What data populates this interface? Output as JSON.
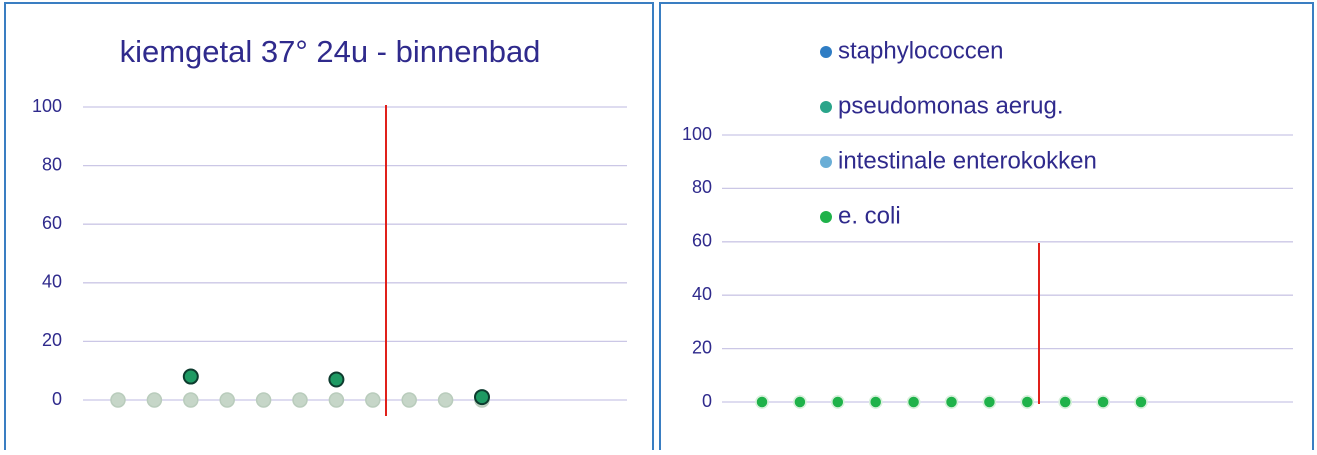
{
  "chart_data": [
    {
      "type": "scatter",
      "title": "kiemgetal 37° 24u - binnenbad",
      "categories": [
        null,
        null,
        null,
        null,
        null,
        null,
        null,
        null,
        null,
        null,
        null
      ],
      "series": [
        {
          "color": "#c6d6c8",
          "values": [
            0,
            0,
            0,
            0,
            0,
            0,
            0,
            0,
            0,
            0,
            0
          ]
        },
        {
          "color": "#1e9a63",
          "values": [
            null,
            null,
            8,
            null,
            null,
            null,
            7,
            null,
            null,
            null,
            1
          ]
        }
      ],
      "ylim": [
        0,
        100
      ],
      "yticks": [
        0,
        20,
        40,
        60,
        80,
        100
      ],
      "grid": true
    },
    {
      "type": "scatter",
      "categories": [
        null,
        null,
        null,
        null,
        null,
        null,
        null,
        null,
        null,
        null,
        null
      ],
      "series": [
        {
          "name": "staphylococcen",
          "color": "#2f7dc4",
          "values": [
            0,
            0,
            0,
            0,
            0,
            0,
            0,
            0,
            0,
            0,
            0
          ]
        },
        {
          "name": "pseudomonas aerug.",
          "color": "#2aa58a",
          "values": [
            0,
            0,
            0,
            0,
            0,
            0,
            0,
            0,
            0,
            0,
            0
          ]
        },
        {
          "name": "intestinale enterokokken",
          "color": "#6aaed6",
          "values": [
            0,
            0,
            0,
            0,
            0,
            0,
            0,
            0,
            0,
            0,
            0
          ]
        },
        {
          "name": "e. coli",
          "color": "#1fb24a",
          "values": [
            0,
            0,
            0,
            0,
            0,
            0,
            0,
            0,
            0,
            0,
            0
          ]
        }
      ],
      "ylim": [
        0,
        100
      ],
      "yticks": [
        0,
        20,
        40,
        60,
        80,
        100
      ],
      "grid": true,
      "legend": "top"
    }
  ]
}
